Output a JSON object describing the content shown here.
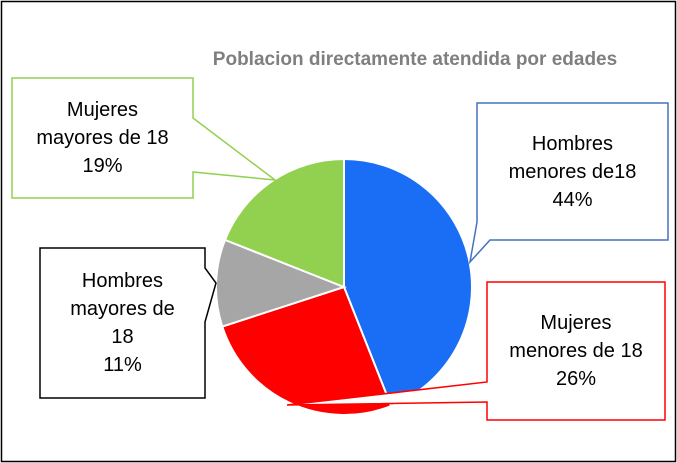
{
  "chart_data": {
    "type": "pie",
    "title": "Poblacion directamente atendida por edades",
    "categories": [
      "Hombres menores de18",
      "Mujeres menores de 18",
      "Hombres mayores de 18",
      "Mujeres mayores de 18"
    ],
    "values": [
      44,
      26,
      11,
      19
    ],
    "value_labels": [
      "44%",
      "26%",
      "11%",
      "19%"
    ],
    "colors": [
      "#1a6ef5",
      "#ff0000",
      "#a6a6a6",
      "#92d050"
    ]
  }
}
